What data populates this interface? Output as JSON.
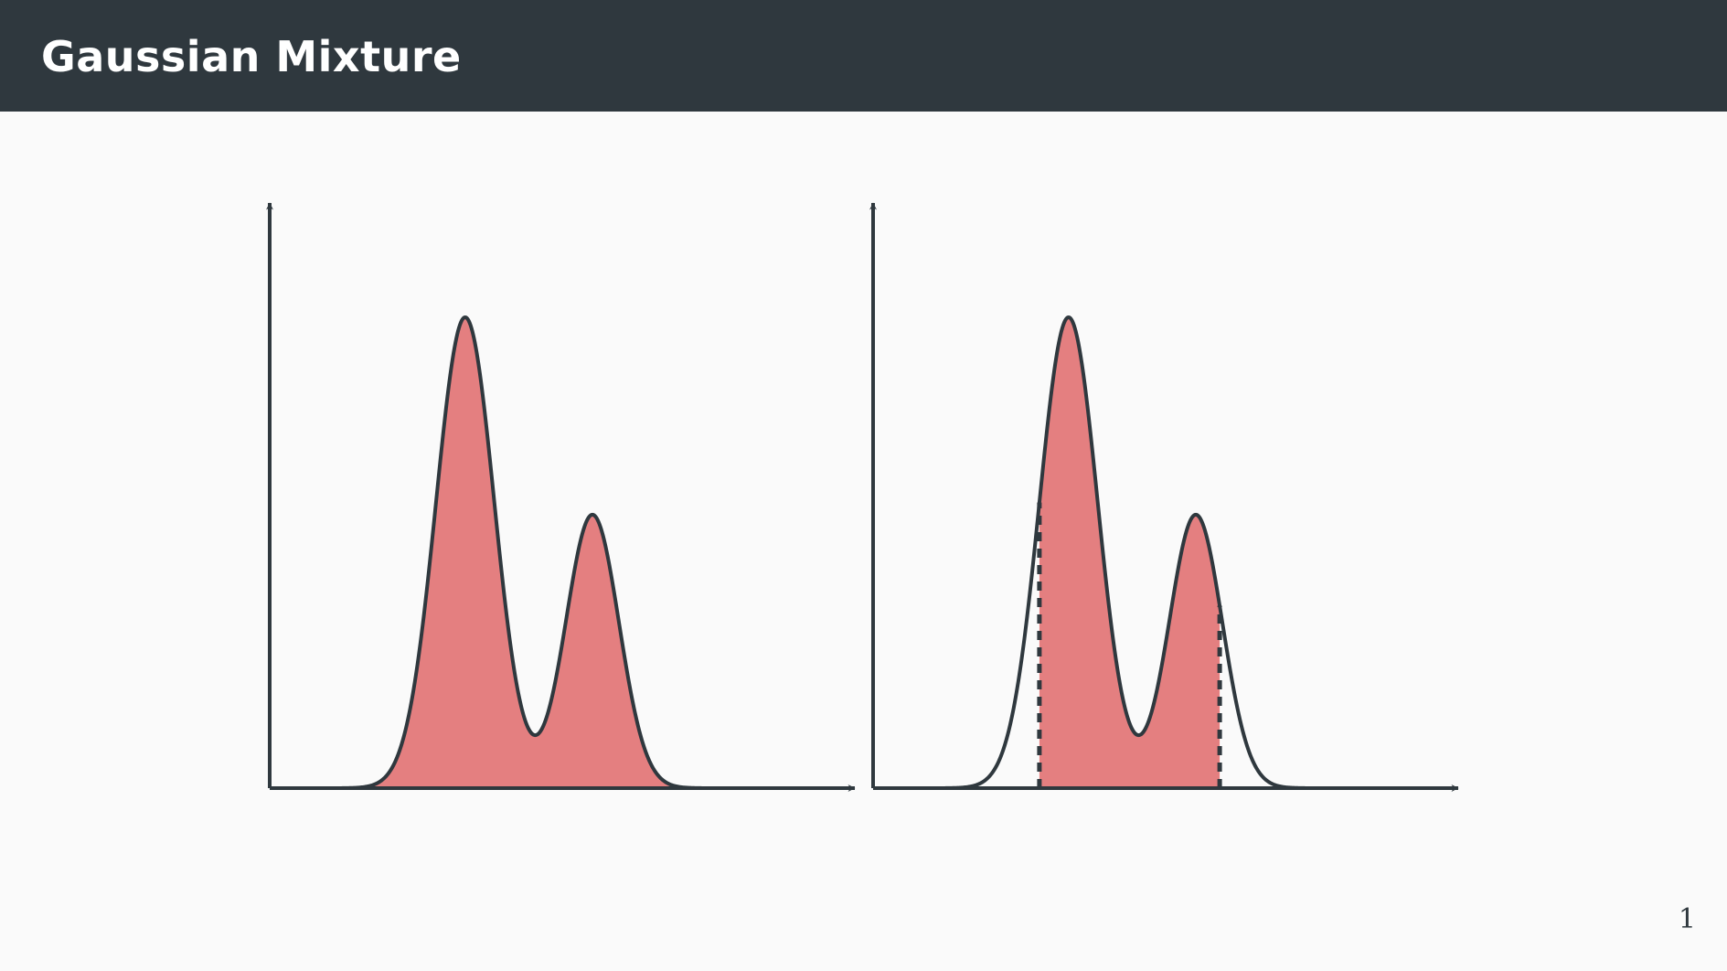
{
  "slide": {
    "title": "Gaussian Mixture",
    "page_number": "1"
  },
  "colors": {
    "header_bg": "#2f383e",
    "fill": "#e47f80",
    "curve": "#2f383e",
    "background": "#fafafa"
  },
  "mixture": {
    "components": [
      {
        "weight": 0.62,
        "mean": 3.6,
        "sd": 0.55
      },
      {
        "weight": 0.36,
        "mean": 6.0,
        "sd": 0.5
      }
    ],
    "x_range": [
      0,
      10
    ]
  },
  "panels": [
    {
      "id": "left",
      "shade": "full"
    },
    {
      "id": "right",
      "shade": "interval",
      "interval": [
        3.05,
        6.45
      ]
    }
  ]
}
